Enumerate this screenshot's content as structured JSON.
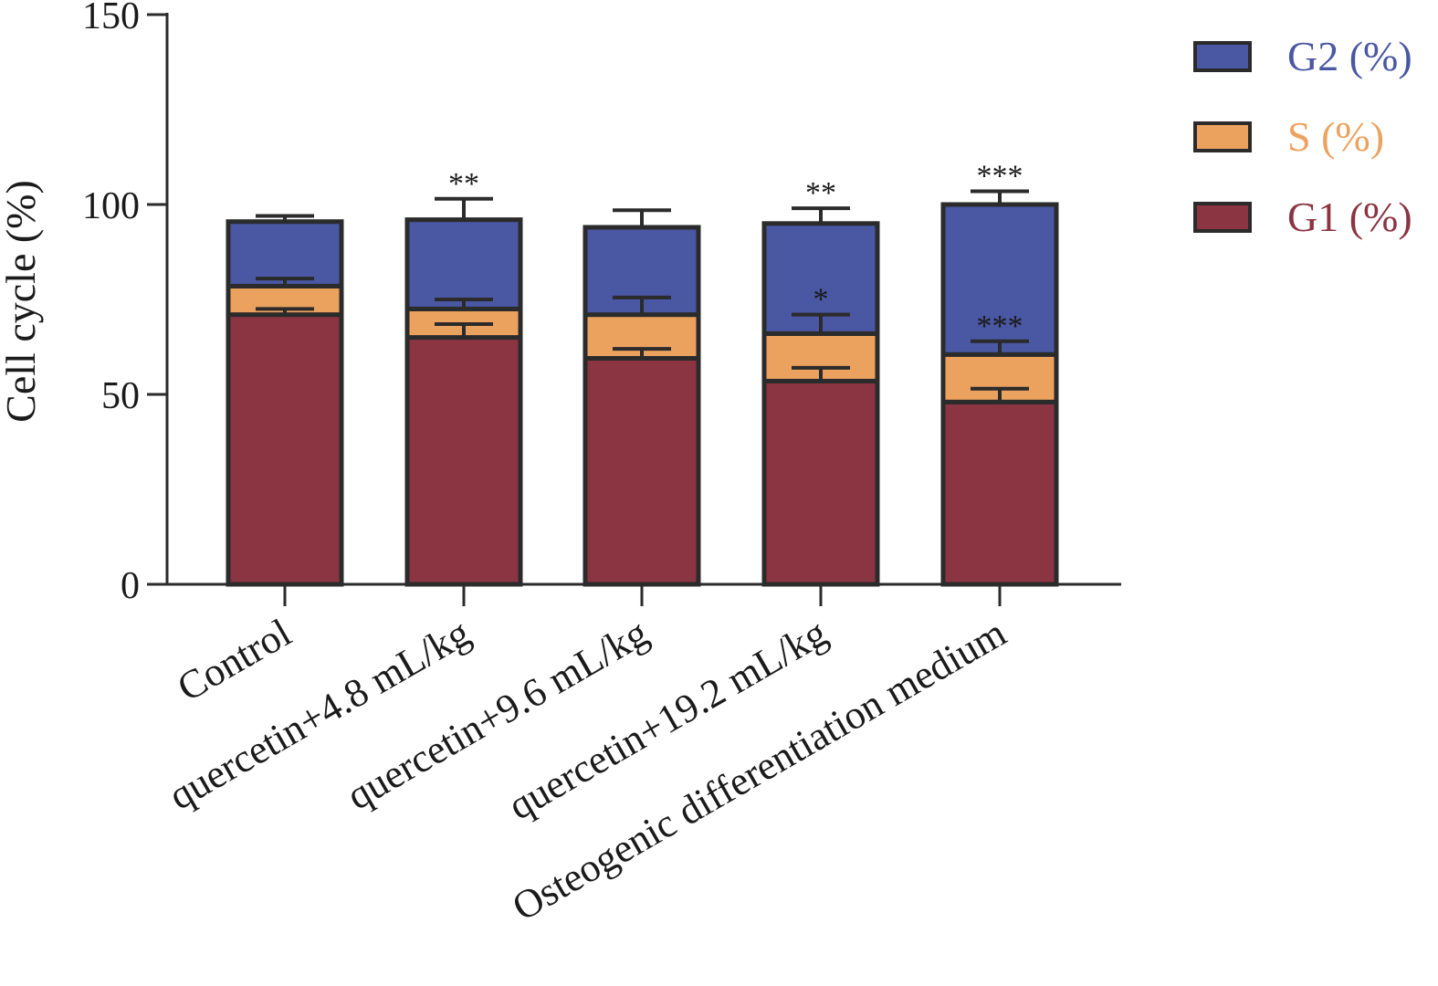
{
  "chart_data": {
    "type": "bar",
    "stacked": true,
    "ylabel": "Cell cycle (%)",
    "xlabel": "",
    "ylim": [
      0,
      150
    ],
    "yticks": [
      0,
      50,
      100,
      150
    ],
    "grid": false,
    "legend_position": "top-right",
    "categories": [
      "Control",
      "quercetin+4.8 mL/kg",
      "quercetin+9.6 mL/kg",
      "quercetin+19.2 mL/kg",
      "Osteogenic differentiation medium"
    ],
    "series": [
      {
        "name": "G1 (%)",
        "color": "#8b3442",
        "values": [
          71,
          65,
          59.5,
          53.5,
          48
        ],
        "errors": [
          1.5,
          3.5,
          2.5,
          3.5,
          3.5
        ],
        "significance": [
          "",
          "",
          "",
          "",
          ""
        ]
      },
      {
        "name": "S (%)",
        "color": "#eca25f",
        "values": [
          7.5,
          7.5,
          11.5,
          12.5,
          12.5
        ],
        "errors": [
          2,
          2.5,
          4.5,
          5,
          3.5
        ],
        "significance": [
          "",
          "",
          "",
          "*",
          "***"
        ]
      },
      {
        "name": "G2 (%)",
        "color": "#4a57a2",
        "values": [
          17,
          23.5,
          23,
          29,
          39.5
        ],
        "errors": [
          1.5,
          5.5,
          4.5,
          4,
          3.5
        ],
        "significance": [
          "",
          "**",
          "",
          "**",
          "***"
        ]
      }
    ],
    "legend_order": [
      "G2 (%)",
      "S (%)",
      "G1 (%)"
    ]
  }
}
